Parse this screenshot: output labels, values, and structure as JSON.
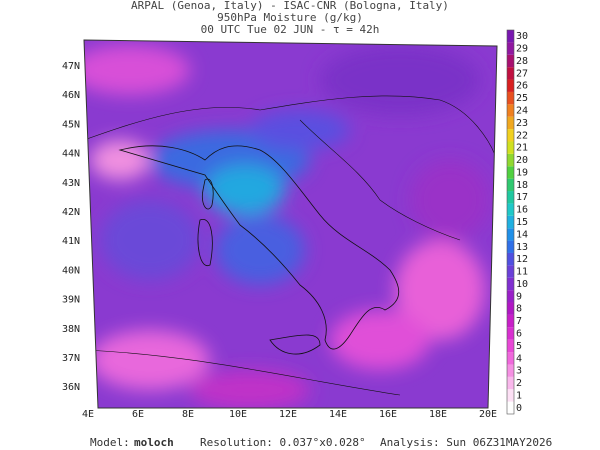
{
  "header": {
    "lines": [
      "ARPAL (Genoa, Italy)  -  ISAC-CNR (Bologna, Italy)",
      "950hPa Moisture (g/kg)",
      "00 UTC Tue 02 JUN  -  τ = 42h"
    ]
  },
  "map": {
    "lat_labels": [
      "47N",
      "46N",
      "45N",
      "44N",
      "43N",
      "42N",
      "41N",
      "40N",
      "39N",
      "38N",
      "37N",
      "36N"
    ],
    "lon_labels": [
      "4E",
      "6E",
      "8E",
      "10E",
      "12E",
      "14E",
      "16E",
      "18E",
      "20E"
    ]
  },
  "colorbar": {
    "levels": [
      0,
      1,
      2,
      3,
      4,
      5,
      6,
      7,
      8,
      9,
      10,
      11,
      12,
      13,
      14,
      15,
      16,
      17,
      18,
      19,
      20,
      21,
      22,
      23,
      24,
      25,
      26,
      27,
      28,
      29,
      30
    ],
    "colors": [
      "#ffffff",
      "#fde0f5",
      "#f9b8ec",
      "#f590e3",
      "#f068dc",
      "#e848d6",
      "#d830d0",
      "#c820c8",
      "#b018c4",
      "#9a20c8",
      "#8030d0",
      "#6a40d8",
      "#5050e0",
      "#3070e8",
      "#2090e8",
      "#20b0e0",
      "#20c8c8",
      "#20c8a0",
      "#30c870",
      "#50d040",
      "#90d830",
      "#d0e020",
      "#f0d020",
      "#f0a820",
      "#f08020",
      "#e85020",
      "#d82020",
      "#c01040",
      "#a81070",
      "#9018a0",
      "#7818b0"
    ]
  },
  "footer": {
    "model_label": "Model:",
    "model": "moloch",
    "resolution": "Resolution: 0.037°x0.028°",
    "analysis": "Analysis: Sun 06Z31MAY2026"
  }
}
